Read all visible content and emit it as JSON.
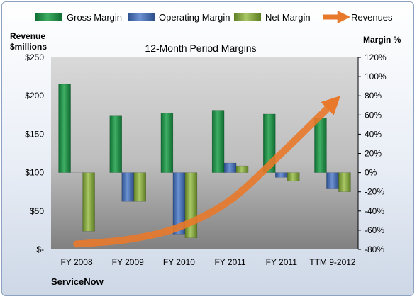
{
  "chart_data": {
    "type": "bar",
    "title": "12-Month Period Margins",
    "categories": [
      "FY 2008",
      "FY 2009",
      "FY 2010",
      "FY 2011",
      "FY 2011",
      "TTM 9-2012"
    ],
    "series": [
      {
        "name": "Gross Margin",
        "axis": "right",
        "color": "#1e8a45",
        "values": [
          92,
          59,
          62,
          65,
          61,
          57
        ]
      },
      {
        "name": "Operating Margin",
        "axis": "right",
        "color": "#3f6ab0",
        "values": [
          0,
          -30,
          -64,
          10,
          -5,
          -17
        ]
      },
      {
        "name": "Net Margin",
        "axis": "right",
        "color": "#86a83c",
        "values": [
          -61,
          -30,
          -68,
          7,
          -9,
          -20
        ]
      },
      {
        "name": "Revenues",
        "axis": "left",
        "type": "line",
        "color": "#e8792a",
        "values": [
          7,
          13,
          29,
          64,
          125,
          190
        ]
      }
    ],
    "left_axis": {
      "title_line1": "Revenue",
      "title_line2": "$millions",
      "range": [
        0,
        250
      ],
      "ticks": [
        "$-",
        "$50",
        "$100",
        "$150",
        "$200",
        "$250"
      ]
    },
    "right_axis": {
      "title": "Margin %",
      "range": [
        -80,
        120
      ],
      "ticks": [
        "-80%",
        "-60%",
        "-40%",
        "-20%",
        "0%",
        "20%",
        "40%",
        "60%",
        "80%",
        "100%",
        "120%"
      ]
    },
    "legend_position": "top",
    "grid": false
  },
  "footer_label": "ServiceNow"
}
